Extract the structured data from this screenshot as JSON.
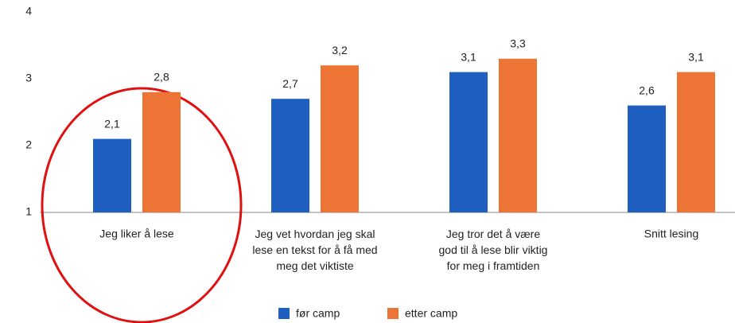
{
  "chart_data": {
    "type": "bar",
    "categories": [
      "Jeg liker å lese",
      "Jeg vet hvordan jeg skal\nlese en tekst for å få med\nmeg det viktiste",
      "Jeg tror det å være\ngod til å lese blir viktig\nfor meg i framtiden",
      "Snitt lesing"
    ],
    "series": [
      {
        "name": "før camp",
        "color": "#1f5fbf",
        "values": [
          2.1,
          2.7,
          3.1,
          2.6
        ],
        "value_labels": [
          "2,1",
          "2,7",
          "3,1",
          "2,6"
        ]
      },
      {
        "name": "etter camp",
        "color": "#ec7434",
        "values": [
          2.8,
          3.2,
          3.3,
          3.1
        ],
        "value_labels": [
          "2,8",
          "3,2",
          "3,3",
          "3,1"
        ]
      }
    ],
    "ylim": [
      1,
      4
    ],
    "yticks": [
      1,
      2,
      3,
      4
    ],
    "grid": false,
    "legend": "bottom"
  }
}
